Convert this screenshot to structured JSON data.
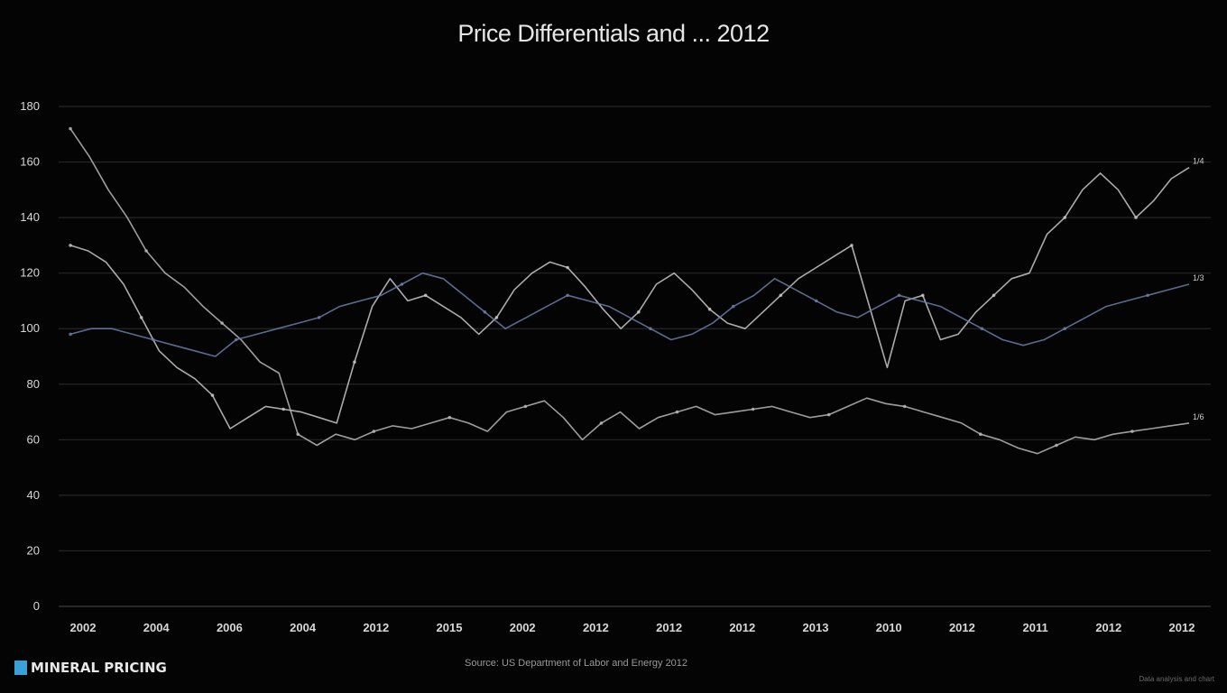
{
  "chart_data": {
    "type": "line",
    "title": "Price Differentials and ... 2012",
    "xlabel": "",
    "ylabel": "",
    "ylim": [
      0,
      180
    ],
    "y_ticks": [
      {
        "value": 0,
        "label": "0"
      },
      {
        "value": 20,
        "label": "20"
      },
      {
        "value": 40,
        "label": "40"
      },
      {
        "value": 60,
        "label": "60"
      },
      {
        "value": 80,
        "label": "80"
      },
      {
        "value": 100,
        "label": "100"
      },
      {
        "value": 120,
        "label": "120"
      },
      {
        "value": 140,
        "label": "140"
      },
      {
        "value": 160,
        "label": "160"
      },
      {
        "value": 180,
        "label": "180"
      }
    ],
    "x_tick_labels": [
      "2002",
      "2004",
      "2006",
      "2004",
      "2012",
      "2015",
      "2002",
      "2012",
      "2012",
      "2012",
      "2013",
      "2010",
      "2012",
      "2011",
      "2012",
      "2012"
    ],
    "x_count": 16,
    "grid": true,
    "legend": "none",
    "series": [
      {
        "color": "#b9b9b9",
        "values": [
          172,
          162,
          150,
          140,
          128,
          120,
          115,
          108,
          102,
          96,
          88,
          84,
          62,
          58,
          62,
          60,
          63,
          65,
          64,
          66,
          68,
          66,
          63,
          70,
          72,
          74,
          68,
          60,
          66,
          70,
          64,
          68,
          70,
          72,
          69,
          70,
          71,
          72,
          70,
          68,
          69,
          72,
          75,
          73,
          72,
          70,
          68,
          66,
          62,
          60,
          57,
          55,
          58,
          61,
          60,
          62,
          63,
          64,
          65,
          66
        ]
      },
      {
        "color": "#c9c9c9",
        "values": [
          130,
          128,
          124,
          116,
          104,
          92,
          86,
          82,
          76,
          64,
          68,
          72,
          71,
          70,
          68,
          66,
          88,
          108,
          118,
          110,
          112,
          108,
          104,
          98,
          104,
          114,
          120,
          124,
          122,
          115,
          107,
          100,
          106,
          116,
          120,
          114,
          107,
          102,
          100,
          106,
          112,
          118,
          122,
          126,
          130,
          108,
          86,
          110,
          112,
          96,
          98,
          106,
          112,
          118,
          120,
          134,
          140,
          150,
          156,
          150,
          140,
          146,
          154,
          158
        ]
      },
      {
        "color": "#6b7ea8",
        "values": [
          98,
          100,
          100,
          98,
          96,
          94,
          92,
          90,
          96,
          98,
          100,
          102,
          104,
          108,
          110,
          112,
          116,
          120,
          118,
          112,
          106,
          100,
          104,
          108,
          112,
          110,
          108,
          104,
          100,
          96,
          98,
          102,
          108,
          112,
          118,
          114,
          110,
          106,
          104,
          108,
          112,
          110,
          108,
          104,
          100,
          96,
          94,
          96,
          100,
          104,
          108,
          110,
          112,
          114,
          116
        ]
      }
    ],
    "end_labels": [
      "1/6",
      "1/4",
      "1/3"
    ]
  },
  "footer": {
    "logo_text": "MINERAL PRICING",
    "source_text": "Source: US Department of Labor and Energy 2012",
    "credit_text": "Data analysis and chart"
  }
}
